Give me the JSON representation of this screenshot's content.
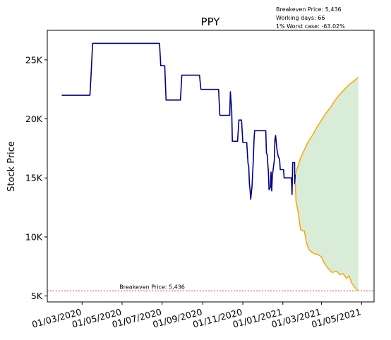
{
  "chart_data": {
    "type": "line",
    "title": "PPY",
    "xlabel": "",
    "ylabel": "Stock Price",
    "grid": false,
    "info_lines": [
      "Breakeven Price: 5,436",
      "Working days: 66",
      "1% Worst case: -63.02%"
    ],
    "xlim": [
      "2020-01-08",
      "2021-05-20"
    ],
    "ylim": [
      4500,
      27500
    ],
    "x_ticks": [
      {
        "date": "2020-03-01",
        "label": "01/03/2020"
      },
      {
        "date": "2020-05-01",
        "label": "01/05/2020"
      },
      {
        "date": "2020-07-01",
        "label": "01/07/2020"
      },
      {
        "date": "2020-09-01",
        "label": "01/09/2020"
      },
      {
        "date": "2020-11-01",
        "label": "01/11/2020"
      },
      {
        "date": "2021-01-01",
        "label": "01/01/2021"
      },
      {
        "date": "2021-03-01",
        "label": "01/03/2021"
      },
      {
        "date": "2021-05-01",
        "label": "01/05/2021"
      }
    ],
    "y_ticks": [
      {
        "value": 5000,
        "label": "5K"
      },
      {
        "value": 10000,
        "label": "10K"
      },
      {
        "value": 15000,
        "label": "15K"
      },
      {
        "value": 20000,
        "label": "20K"
      },
      {
        "value": 25000,
        "label": "25K"
      }
    ],
    "breakeven": {
      "value": 5436,
      "label": "Breakeven Price: 5,436",
      "label_date": "2020-04-27",
      "color": "#ff0000"
    },
    "series": [
      {
        "role": "history",
        "color": "#00008b",
        "points": [
          [
            "2020-01-30",
            22000
          ],
          [
            "2020-03-13",
            22000
          ],
          [
            "2020-03-15",
            24000
          ],
          [
            "2020-03-17",
            26400
          ],
          [
            "2020-06-27",
            26400
          ],
          [
            "2020-06-29",
            24500
          ],
          [
            "2020-07-05",
            24500
          ],
          [
            "2020-07-07",
            21600
          ],
          [
            "2020-07-29",
            21600
          ],
          [
            "2020-07-31",
            23700
          ],
          [
            "2020-08-27",
            23700
          ],
          [
            "2020-08-29",
            22500
          ],
          [
            "2020-09-25",
            22500
          ],
          [
            "2020-09-27",
            20300
          ],
          [
            "2020-10-12",
            20300
          ],
          [
            "2020-10-13",
            22300
          ],
          [
            "2020-10-15",
            20700
          ],
          [
            "2020-10-16",
            18100
          ],
          [
            "2020-10-24",
            18100
          ],
          [
            "2020-10-26",
            19900
          ],
          [
            "2020-10-30",
            19900
          ],
          [
            "2020-11-01",
            18000
          ],
          [
            "2020-11-07",
            18000
          ],
          [
            "2020-11-08",
            17000
          ],
          [
            "2020-11-09",
            16200
          ],
          [
            "2020-11-10",
            16000
          ],
          [
            "2020-11-11",
            14500
          ],
          [
            "2020-11-12",
            14000
          ],
          [
            "2020-11-13",
            13200
          ],
          [
            "2020-11-15",
            14300
          ],
          [
            "2020-11-17",
            16500
          ],
          [
            "2020-11-18",
            18200
          ],
          [
            "2020-11-19",
            19000
          ],
          [
            "2020-12-06",
            19000
          ],
          [
            "2020-12-07",
            17100
          ],
          [
            "2020-12-08",
            17000
          ],
          [
            "2020-12-10",
            15500
          ],
          [
            "2020-12-11",
            14000
          ],
          [
            "2020-12-13",
            14200
          ],
          [
            "2020-12-14",
            15500
          ],
          [
            "2020-12-15",
            13900
          ],
          [
            "2020-12-16",
            15200
          ],
          [
            "2020-12-19",
            16500
          ],
          [
            "2020-12-20",
            18300
          ],
          [
            "2020-12-21",
            18600
          ],
          [
            "2020-12-23",
            17400
          ],
          [
            "2020-12-25",
            16800
          ],
          [
            "2020-12-27",
            16600
          ],
          [
            "2020-12-28",
            15700
          ],
          [
            "2021-01-02",
            15700
          ],
          [
            "2021-01-03",
            15000
          ],
          [
            "2021-01-14",
            15000
          ],
          [
            "2021-01-15",
            13600
          ],
          [
            "2021-01-16",
            16300
          ],
          [
            "2021-01-19",
            16300
          ],
          [
            "2021-01-19",
            14500
          ],
          [
            "2021-01-20",
            15300
          ]
        ]
      },
      {
        "role": "projection-upper",
        "color": "#ffa500",
        "points": [
          [
            "2021-01-20",
            15300
          ],
          [
            "2021-01-24",
            16000
          ],
          [
            "2021-01-28",
            16700
          ],
          [
            "2021-02-03",
            17400
          ],
          [
            "2021-02-08",
            18000
          ],
          [
            "2021-02-15",
            18600
          ],
          [
            "2021-02-22",
            19300
          ],
          [
            "2021-03-01",
            19900
          ],
          [
            "2021-03-08",
            20500
          ],
          [
            "2021-03-15",
            21000
          ],
          [
            "2021-03-22",
            21600
          ],
          [
            "2021-03-29",
            22100
          ],
          [
            "2021-04-05",
            22500
          ],
          [
            "2021-04-12",
            22900
          ],
          [
            "2021-04-19",
            23200
          ],
          [
            "2021-04-26",
            23500
          ]
        ]
      },
      {
        "role": "projection-lower",
        "color": "#ffa500",
        "points": [
          [
            "2021-01-20",
            14500
          ],
          [
            "2021-01-21",
            13000
          ],
          [
            "2021-01-24",
            12200
          ],
          [
            "2021-01-28",
            10600
          ],
          [
            "2021-02-03",
            10500
          ],
          [
            "2021-02-06",
            9500
          ],
          [
            "2021-02-10",
            8900
          ],
          [
            "2021-02-17",
            8600
          ],
          [
            "2021-02-24",
            8500
          ],
          [
            "2021-03-01",
            8300
          ],
          [
            "2021-03-05",
            7800
          ],
          [
            "2021-03-10",
            7400
          ],
          [
            "2021-03-17",
            7000
          ],
          [
            "2021-03-24",
            7100
          ],
          [
            "2021-03-29",
            6800
          ],
          [
            "2021-04-03",
            6900
          ],
          [
            "2021-04-08",
            6500
          ],
          [
            "2021-04-12",
            6700
          ],
          [
            "2021-04-16",
            6100
          ],
          [
            "2021-04-21",
            5700
          ],
          [
            "2021-04-26",
            5450
          ]
        ]
      }
    ],
    "band": {
      "color": "#d8ecd8",
      "between": [
        "projection-lower",
        "projection-upper"
      ]
    }
  }
}
